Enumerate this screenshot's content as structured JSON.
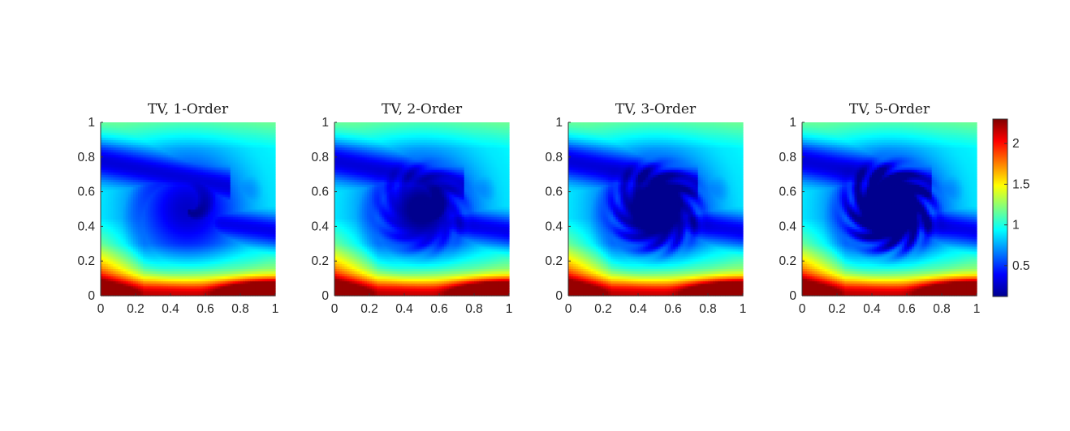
{
  "chart_data": [
    {
      "type": "heatmap",
      "title": "TV, 1-Order",
      "xlim": [
        0,
        1
      ],
      "ylim": [
        0,
        1
      ],
      "xticks": [
        "0",
        "0.2",
        "0.4",
        "0.6",
        "0.8",
        "1"
      ],
      "yticks": [
        "0",
        "0.2",
        "0.4",
        "0.6",
        "0.8",
        "1"
      ],
      "detail": 0
    },
    {
      "type": "heatmap",
      "title": "TV, 2-Order",
      "xlim": [
        0,
        1
      ],
      "ylim": [
        0,
        1
      ],
      "xticks": [
        "0",
        "0.2",
        "0.4",
        "0.6",
        "0.8",
        "1"
      ],
      "yticks": [
        "0",
        "0.2",
        "0.4",
        "0.6",
        "0.8",
        "1"
      ],
      "detail": 1
    },
    {
      "type": "heatmap",
      "title": "TV, 3-Order",
      "xlim": [
        0,
        1
      ],
      "ylim": [
        0,
        1
      ],
      "xticks": [
        "0",
        "0.2",
        "0.4",
        "0.6",
        "0.8",
        "1"
      ],
      "yticks": [
        "0",
        "0.2",
        "0.4",
        "0.6",
        "0.8",
        "1"
      ],
      "detail": 2
    },
    {
      "type": "heatmap",
      "title": "TV, 5-Order",
      "xlim": [
        0,
        1
      ],
      "ylim": [
        0,
        1
      ],
      "xticks": [
        "0",
        "0.2",
        "0.4",
        "0.6",
        "0.8",
        "1"
      ],
      "yticks": [
        "0",
        "0.2",
        "0.4",
        "0.6",
        "0.8",
        "1"
      ],
      "detail": 3
    }
  ],
  "colorbar": {
    "colormap": "jet",
    "range": [
      0.12,
      2.3
    ],
    "ticks": [
      {
        "value": 0.5,
        "label": "0.5"
      },
      {
        "value": 1,
        "label": "1"
      },
      {
        "value": 1.5,
        "label": "1.5"
      },
      {
        "value": 2,
        "label": "2"
      }
    ]
  }
}
